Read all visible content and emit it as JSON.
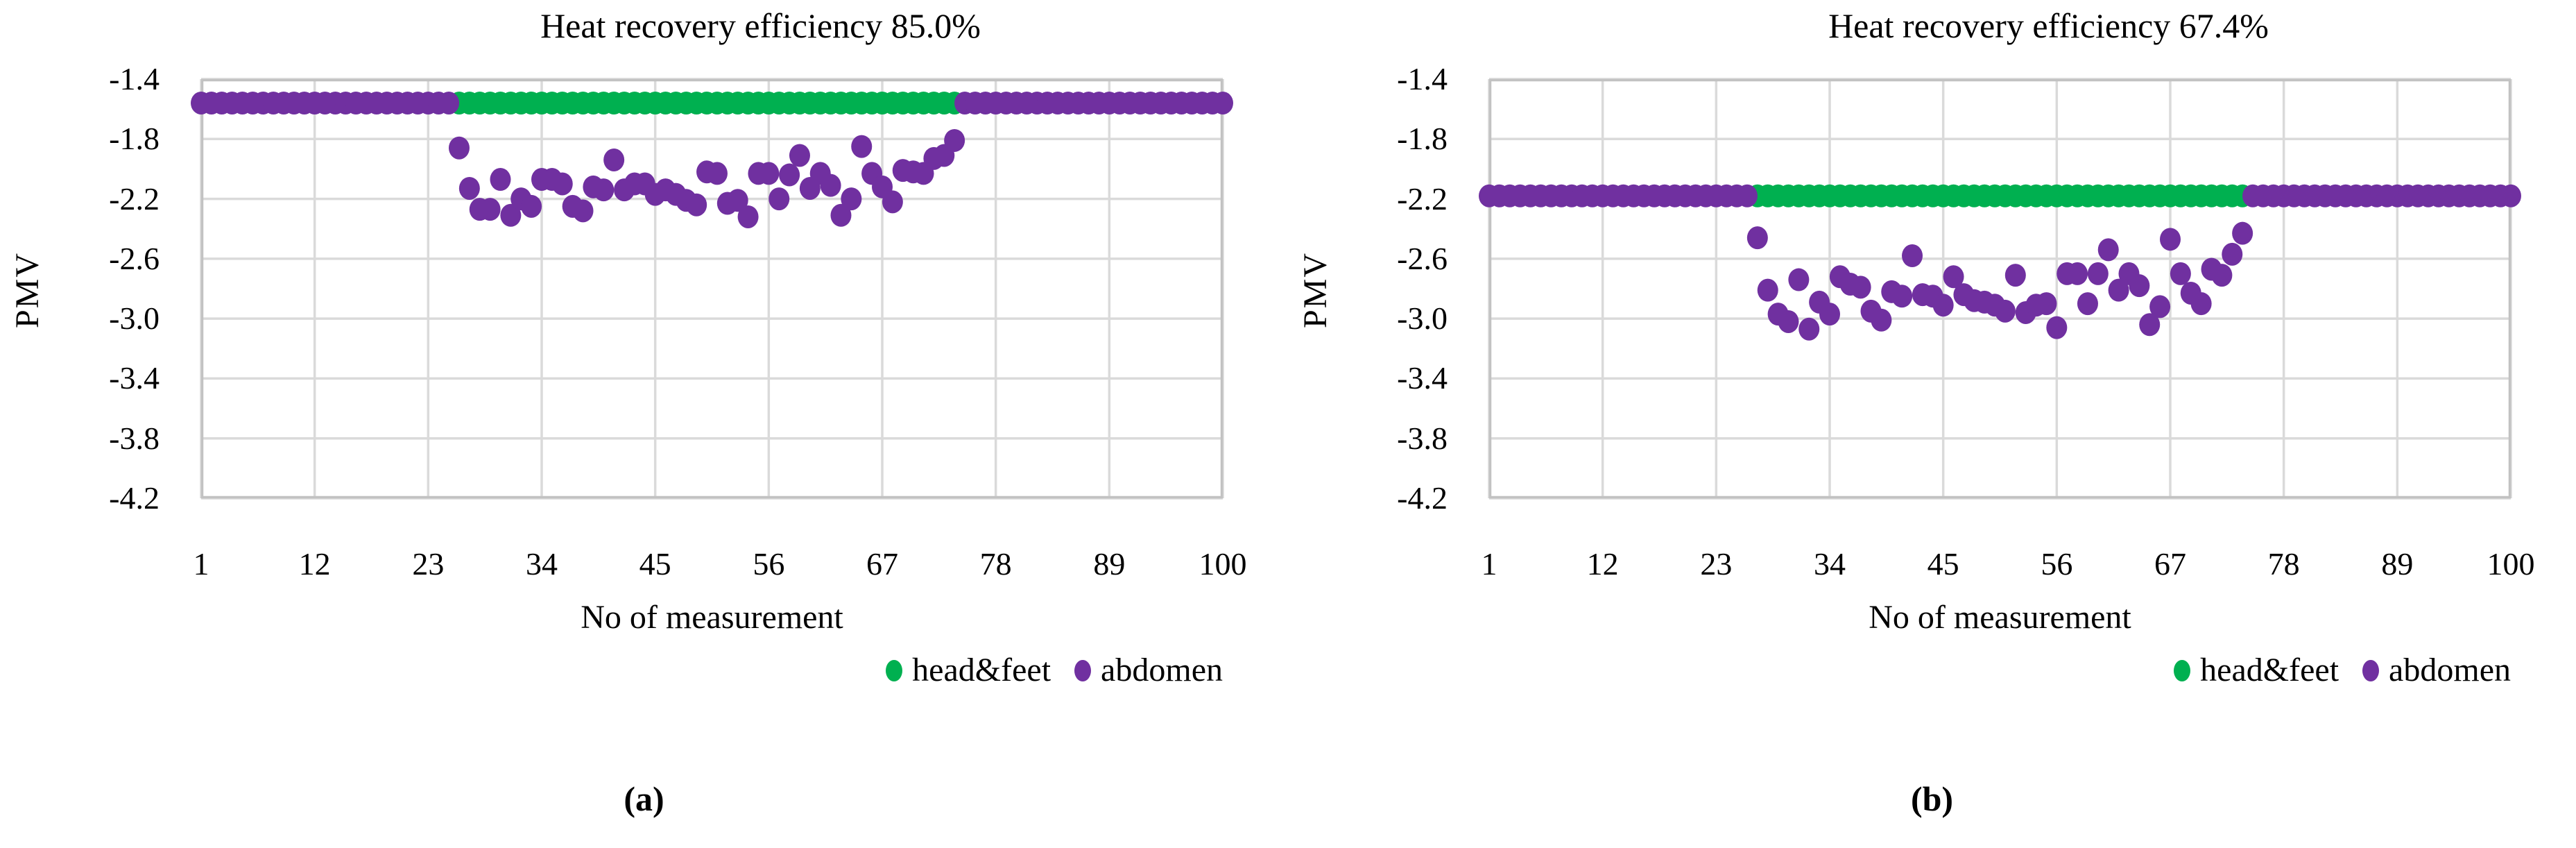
{
  "page": {
    "background": "#ffffff"
  },
  "colors": {
    "head_feet": "#00B050",
    "abdomen": "#7030A0",
    "gridline": "#DADADA",
    "plot_border": "#C2C2C2",
    "text": "#000000"
  },
  "legend": {
    "items": [
      {
        "key": "head-feet",
        "label": "head&feet",
        "color": "#00B050"
      },
      {
        "key": "abdomen",
        "label": "abdomen",
        "color": "#7030A0"
      }
    ]
  },
  "chart_data": [
    {
      "type": "scatter",
      "panel": "a",
      "caption": "(a)",
      "title": "Heat recovery efficiency 85.0%",
      "xlabel": "No of measurement",
      "ylabel": "PMV",
      "xlim": [
        1,
        100
      ],
      "ylim": [
        -4.2,
        -1.4
      ],
      "x_ticks": [
        1,
        12,
        23,
        34,
        45,
        56,
        67,
        78,
        89,
        100
      ],
      "y_tick_labels": [
        "-1.4",
        "-1.8",
        "-2.2",
        "-2.6",
        "-3.0",
        "-3.4",
        "-3.8",
        "-4.2"
      ],
      "grid": true,
      "legend_position": "bottom-right",
      "series": [
        {
          "name": "head&feet",
          "key": "head-feet",
          "color": "#00B050",
          "segments": [
            {
              "x_range": [
                26,
                74
              ],
              "y": -1.56
            }
          ],
          "points": []
        },
        {
          "name": "abdomen",
          "key": "abdomen",
          "color": "#7030A0",
          "segments": [
            {
              "x_range": [
                1,
                25
              ],
              "y": -1.56
            },
            {
              "x_range": [
                75,
                100
              ],
              "y": -1.56
            }
          ],
          "points": [
            [
              26,
              -1.86
            ],
            [
              27,
              -2.13
            ],
            [
              28,
              -2.27
            ],
            [
              29,
              -2.27
            ],
            [
              30,
              -2.07
            ],
            [
              31,
              -2.31
            ],
            [
              32,
              -2.2
            ],
            [
              33,
              -2.25
            ],
            [
              34,
              -2.07
            ],
            [
              35,
              -2.07
            ],
            [
              36,
              -2.1
            ],
            [
              37,
              -2.25
            ],
            [
              38,
              -2.28
            ],
            [
              39,
              -2.12
            ],
            [
              40,
              -2.14
            ],
            [
              41,
              -1.94
            ],
            [
              42,
              -2.14
            ],
            [
              43,
              -2.1
            ],
            [
              44,
              -2.1
            ],
            [
              45,
              -2.17
            ],
            [
              46,
              -2.14
            ],
            [
              47,
              -2.17
            ],
            [
              48,
              -2.21
            ],
            [
              49,
              -2.24
            ],
            [
              50,
              -2.02
            ],
            [
              51,
              -2.03
            ],
            [
              52,
              -2.23
            ],
            [
              53,
              -2.21
            ],
            [
              54,
              -2.32
            ],
            [
              55,
              -2.03
            ],
            [
              56,
              -2.03
            ],
            [
              57,
              -2.2
            ],
            [
              58,
              -2.04
            ],
            [
              59,
              -1.91
            ],
            [
              60,
              -2.13
            ],
            [
              61,
              -2.03
            ],
            [
              62,
              -2.11
            ],
            [
              63,
              -2.31
            ],
            [
              64,
              -2.2
            ],
            [
              65,
              -1.85
            ],
            [
              66,
              -2.03
            ],
            [
              67,
              -2.12
            ],
            [
              68,
              -2.22
            ],
            [
              69,
              -2.01
            ],
            [
              70,
              -2.02
            ],
            [
              71,
              -2.03
            ],
            [
              72,
              -1.93
            ],
            [
              73,
              -1.91
            ],
            [
              74,
              -1.81
            ]
          ]
        }
      ]
    },
    {
      "type": "scatter",
      "panel": "b",
      "caption": "(b)",
      "title": "Heat recovery efficiency 67.4%",
      "xlabel": "No of measurement",
      "ylabel": "PMV",
      "xlim": [
        1,
        100
      ],
      "ylim": [
        -4.2,
        -1.4
      ],
      "x_ticks": [
        1,
        12,
        23,
        34,
        45,
        56,
        67,
        78,
        89,
        100
      ],
      "y_tick_labels": [
        "-1.4",
        "-1.8",
        "-2.2",
        "-2.6",
        "-3.0",
        "-3.4",
        "-3.8",
        "-4.2"
      ],
      "grid": true,
      "legend_position": "bottom-right",
      "series": [
        {
          "name": "head&feet",
          "key": "head-feet",
          "color": "#00B050",
          "segments": [
            {
              "x_range": [
                27,
                74
              ],
              "y": -2.18
            }
          ],
          "points": []
        },
        {
          "name": "abdomen",
          "key": "abdomen",
          "color": "#7030A0",
          "segments": [
            {
              "x_range": [
                1,
                26
              ],
              "y": -2.18
            },
            {
              "x_range": [
                75,
                100
              ],
              "y": -2.18
            }
          ],
          "points": [
            [
              27,
              -2.46
            ],
            [
              28,
              -2.81
            ],
            [
              29,
              -2.97
            ],
            [
              30,
              -3.02
            ],
            [
              31,
              -2.74
            ],
            [
              32,
              -3.07
            ],
            [
              33,
              -2.89
            ],
            [
              34,
              -2.97
            ],
            [
              35,
              -2.72
            ],
            [
              36,
              -2.77
            ],
            [
              37,
              -2.79
            ],
            [
              38,
              -2.95
            ],
            [
              39,
              -3.01
            ],
            [
              40,
              -2.82
            ],
            [
              41,
              -2.85
            ],
            [
              42,
              -2.58
            ],
            [
              43,
              -2.84
            ],
            [
              44,
              -2.85
            ],
            [
              45,
              -2.91
            ],
            [
              46,
              -2.72
            ],
            [
              47,
              -2.84
            ],
            [
              48,
              -2.88
            ],
            [
              49,
              -2.89
            ],
            [
              50,
              -2.91
            ],
            [
              51,
              -2.95
            ],
            [
              52,
              -2.71
            ],
            [
              53,
              -2.96
            ],
            [
              54,
              -2.91
            ],
            [
              55,
              -2.9
            ],
            [
              56,
              -3.06
            ],
            [
              57,
              -2.7
            ],
            [
              58,
              -2.7
            ],
            [
              59,
              -2.9
            ],
            [
              60,
              -2.7
            ],
            [
              61,
              -2.54
            ],
            [
              62,
              -2.81
            ],
            [
              63,
              -2.7
            ],
            [
              64,
              -2.78
            ],
            [
              65,
              -3.04
            ],
            [
              66,
              -2.92
            ],
            [
              67,
              -2.47
            ],
            [
              68,
              -2.7
            ],
            [
              69,
              -2.83
            ],
            [
              70,
              -2.9
            ],
            [
              71,
              -2.67
            ],
            [
              72,
              -2.71
            ],
            [
              73,
              -2.57
            ],
            [
              74,
              -2.43
            ]
          ]
        }
      ]
    }
  ]
}
